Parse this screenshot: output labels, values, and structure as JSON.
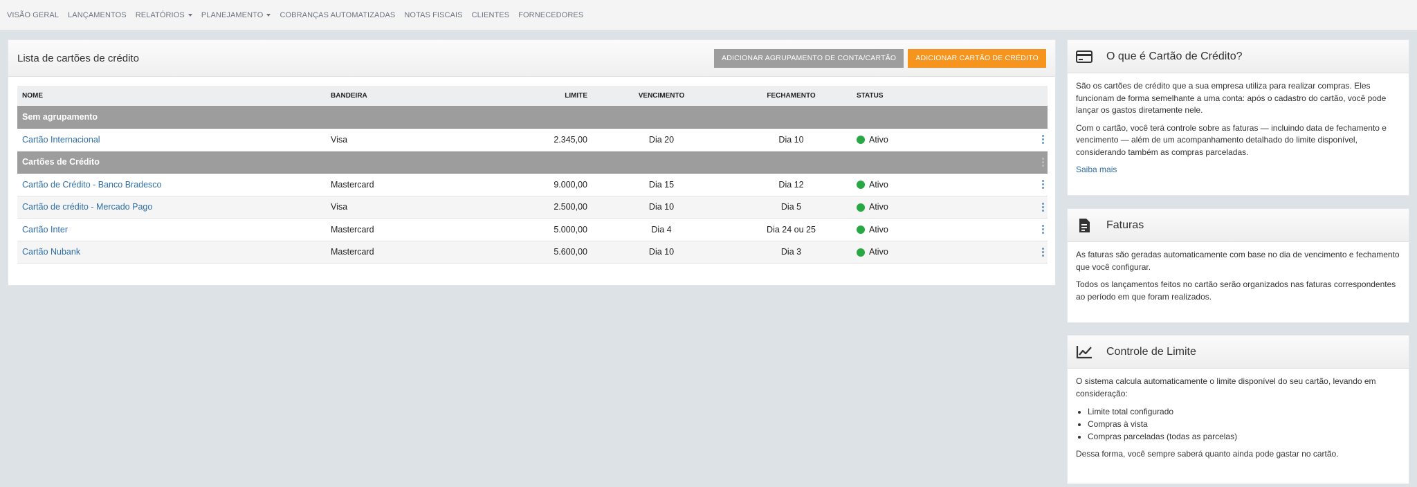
{
  "nav": {
    "items": [
      {
        "label": "VISÃO GERAL",
        "dropdown": false
      },
      {
        "label": "LANÇAMENTOS",
        "dropdown": false
      },
      {
        "label": "RELATÓRIOS",
        "dropdown": true
      },
      {
        "label": "PLANEJAMENTO",
        "dropdown": true
      },
      {
        "label": "COBRANÇAS AUTOMATIZADAS",
        "dropdown": false
      },
      {
        "label": "NOTAS FISCAIS",
        "dropdown": false
      },
      {
        "label": "CLIENTES",
        "dropdown": false
      },
      {
        "label": "FORNECEDORES",
        "dropdown": false
      }
    ]
  },
  "main": {
    "title": "Lista de cartões de crédito",
    "btn_group": "ADICIONAR AGRUPAMENTO DE CONTA/CARTÃO",
    "btn_add": "ADICIONAR CARTÃO DE CRÉDITO",
    "columns": {
      "nome": "NOME",
      "bandeira": "BANDEIRA",
      "limite": "LIMITE",
      "vencimento": "VENCIMENTO",
      "fechamento": "FECHAMENTO",
      "status": "STATUS"
    },
    "groups": [
      {
        "name": "Sem agrupamento",
        "rows": [
          {
            "nome": "Cartão Internacional",
            "bandeira": "Visa",
            "limite": "2.345,00",
            "vencimento": "Dia 20",
            "fechamento": "Dia 10",
            "status": "Ativo"
          }
        ]
      },
      {
        "name": "Cartões de Crédito",
        "rows": [
          {
            "nome": "Cartão de Crédito - Banco Bradesco",
            "bandeira": "Mastercard",
            "limite": "9.000,00",
            "vencimento": "Dia 15",
            "fechamento": "Dia 12",
            "status": "Ativo"
          },
          {
            "nome": "Cartão de crédito - Mercado Pago",
            "bandeira": "Visa",
            "limite": "2.500,00",
            "vencimento": "Dia 10",
            "fechamento": "Dia 5",
            "status": "Ativo"
          },
          {
            "nome": "Cartão Inter",
            "bandeira": "Mastercard",
            "limite": "5.000,00",
            "vencimento": "Dia 4",
            "fechamento": "Dia 24 ou 25",
            "status": "Ativo"
          },
          {
            "nome": "Cartão Nubank",
            "bandeira": "Mastercard",
            "limite": "5.600,00",
            "vencimento": "Dia 10",
            "fechamento": "Dia 3",
            "status": "Ativo"
          }
        ]
      }
    ]
  },
  "side1": {
    "icon": "credit-card-icon",
    "title": "O que é Cartão de Crédito?",
    "p1": "São os cartões de crédito que a sua empresa utiliza para realizar compras. Eles funcionam de forma semelhante a uma conta: após o cadastro do cartão, você pode lançar os gastos diretamente nele.",
    "p2": "Com o cartão, você terá controle sobre as faturas — incluindo data de fechamento e vencimento — além de um acompanhamento detalhado do limite disponível, considerando também as compras parceladas.",
    "link": "Saiba mais"
  },
  "side2": {
    "icon": "invoice-icon",
    "title": "Faturas",
    "p1": "As faturas são geradas automaticamente com base no dia de vencimento e fechamento que você configurar.",
    "p2": "Todos os lançamentos feitos no cartão serão organizados nas faturas correspondentes ao período em que foram realizados."
  },
  "side3": {
    "icon": "line-chart-icon",
    "title": "Controle de Limite",
    "p1": "O sistema calcula automaticamente o limite disponível do seu cartão, levando em consideração:",
    "list": [
      "Limite total configurado",
      "Compras à vista",
      "Compras parceladas (todas as parcelas)"
    ],
    "p2": "Dessa forma, você sempre saberá quanto ainda pode gastar no cartão."
  },
  "colors": {
    "accent": "#f7941d",
    "link": "#2f6fa8",
    "status_active": "#27a844",
    "group_row": "#9d9d9d"
  }
}
